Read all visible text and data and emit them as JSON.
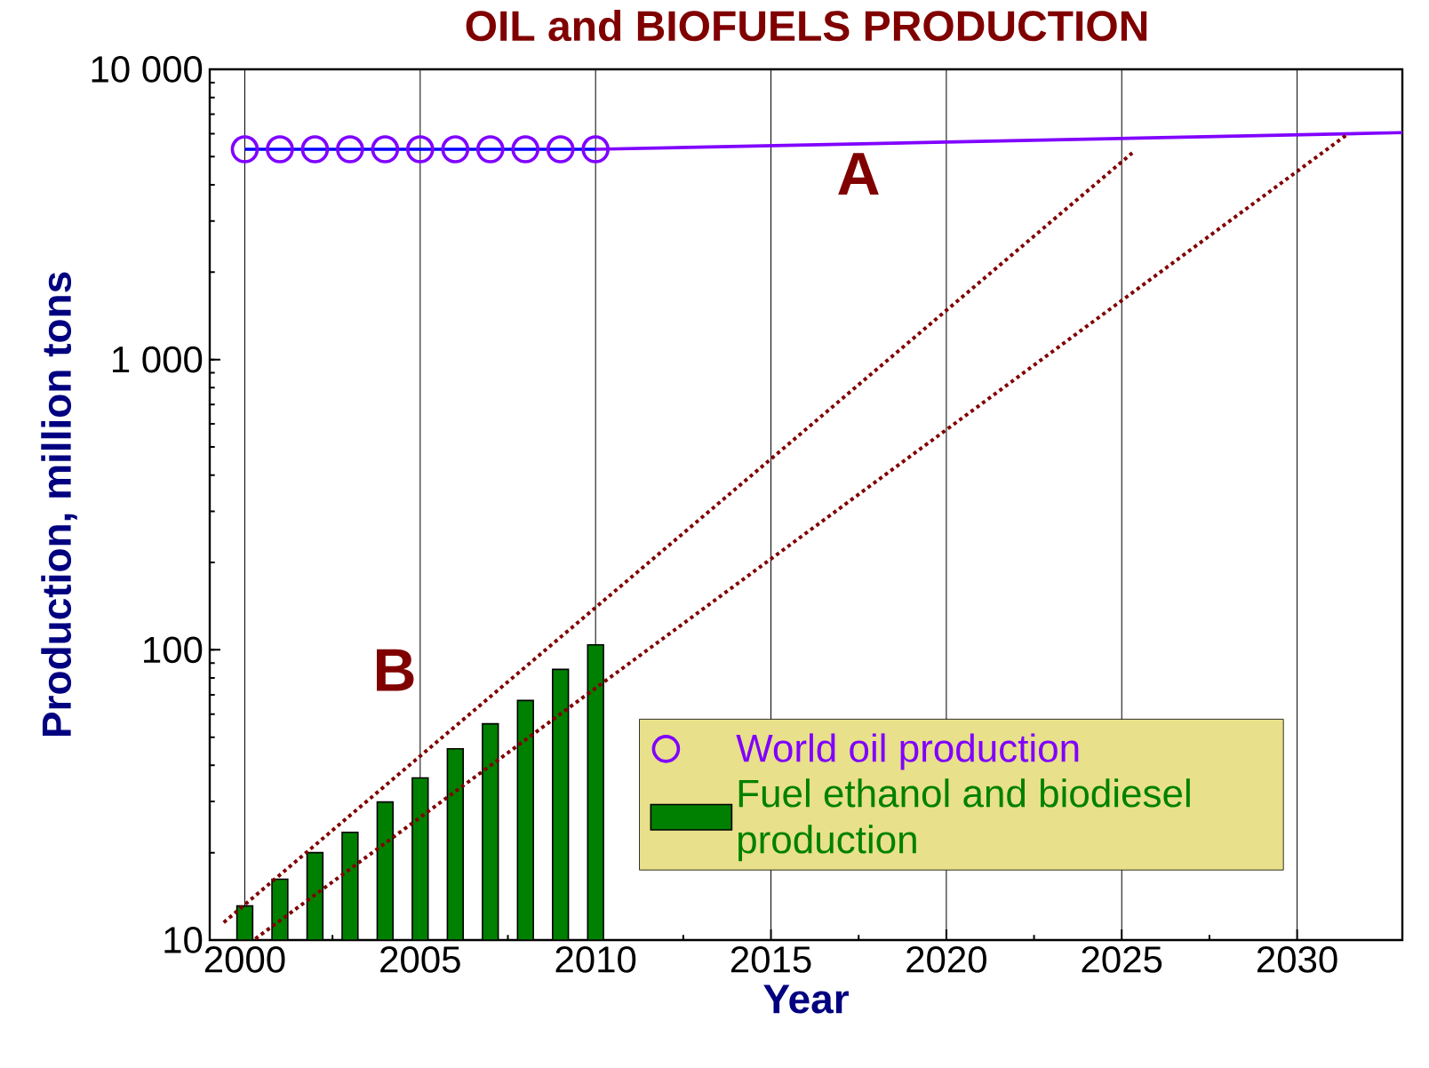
{
  "chart_data": {
    "type": "bar",
    "title": "OIL and BIOFUELS PRODUCTION",
    "xlabel": "Year",
    "ylabel": "Production, million tons",
    "x": [
      2000,
      2001,
      2002,
      2003,
      2004,
      2005,
      2006,
      2007,
      2008,
      2009,
      2010
    ],
    "series": [
      {
        "type": "scatter",
        "name": "World oil production",
        "color": "#8000ff",
        "marker": "circle",
        "values": [
          5300,
          5300,
          5300,
          5300,
          5300,
          5300,
          5300,
          5300,
          5300,
          5300,
          5300
        ]
      },
      {
        "name": "Fuel ethanol and biodiesel production",
        "color": "#008000",
        "values": [
          13.1,
          16.2,
          20.0,
          23.5,
          29.9,
          36.2,
          45.6,
          55.6,
          66.9,
          85.6,
          104
        ]
      },
      {
        "type": "line",
        "color": "#0000ff",
        "line_style": "solid",
        "x": [
          2000,
          2010
        ],
        "values": [
          5300,
          5300
        ]
      },
      {
        "type": "line",
        "color": "#8000ff",
        "line_style": "solid",
        "x": [
          2010,
          2033
        ],
        "values": [
          5300,
          6050
        ]
      },
      {
        "type": "line",
        "color": "#800000",
        "line_style": "dotted",
        "x": [
          1999.4,
          2025.3
        ],
        "values": [
          11.5,
          5150
        ]
      },
      {
        "type": "line",
        "color": "#800000",
        "line_style": "dotted",
        "x": [
          2000.3,
          2031.4
        ],
        "values": [
          10.1,
          5930
        ]
      }
    ],
    "annotations": [
      "A",
      "B"
    ],
    "log": "y",
    "xlim": [
      1999,
      2033
    ],
    "ylim": [
      10,
      10000
    ],
    "xticks": [
      2000,
      2005,
      2010,
      2015,
      2020,
      2025,
      2030
    ],
    "yticks": [
      10,
      100,
      {
        "value": 1000,
        "label": "1 000"
      },
      {
        "value": 10000,
        "label": "10 000"
      }
    ],
    "grid": "x",
    "legend": "bottom right"
  }
}
